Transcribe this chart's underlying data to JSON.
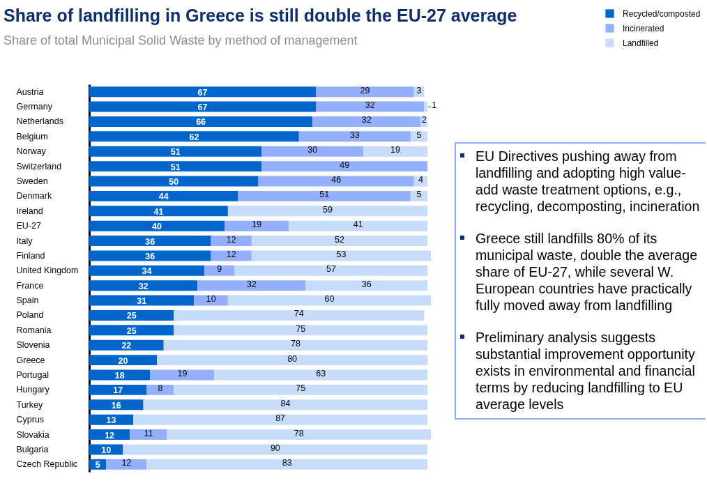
{
  "chart_data": {
    "type": "bar",
    "orientation": "horizontal",
    "stacked": true,
    "data_labels": true,
    "legend": "top right",
    "title": "Share of landfilling in Greece is still double the EU-27 average",
    "subtitle": "Share of total Municipal Solid Waste by method of management",
    "categories": [
      "Austria",
      "Germany",
      "Netherlands",
      "Belgium",
      "Norway",
      "Switzerland",
      "Sweden",
      "Denmark",
      "Ireland",
      "EU-27",
      "Italy",
      "Finland",
      "United Kingdom",
      "France",
      "Spain",
      "Poland",
      "Romania",
      "Slovenia",
      "Greece",
      "Portugal",
      "Hungary",
      "Turkey",
      "Cyprus",
      "Slovakia",
      "Bulgaria",
      "Czech Republic"
    ],
    "series": [
      {
        "name": "Recycled/composted",
        "color": "#0066cc",
        "values": [
          67,
          67,
          66,
          62,
          51,
          51,
          50,
          44,
          41,
          40,
          36,
          36,
          34,
          32,
          31,
          25,
          25,
          22,
          20,
          18,
          17,
          16,
          13,
          12,
          10,
          5
        ]
      },
      {
        "name": "Incinerated",
        "color": "#94b0fc",
        "values": [
          29,
          32,
          32,
          33,
          30,
          49,
          46,
          51,
          null,
          19,
          12,
          12,
          9,
          32,
          10,
          null,
          null,
          null,
          null,
          19,
          8,
          null,
          null,
          11,
          null,
          12
        ]
      },
      {
        "name": "Landfilled",
        "color": "#c6dcf8",
        "values": [
          3,
          1,
          2,
          5,
          19,
          null,
          4,
          5,
          59,
          41,
          52,
          53,
          57,
          36,
          60,
          74,
          75,
          78,
          80,
          63,
          75,
          84,
          87,
          78,
          90,
          83
        ]
      }
    ],
    "annotations": [
      "EU Directives pushing away from landfilling and adopting high value-add waste treatment options, e.g., recycling, decomposting, incineration",
      "Greece still landfills 80% of its municipal waste, double the average share of EU-27, while several W. European countries have practically fully moved away from landfilling",
      "Preliminary analysis suggests substantial improvement opportunity exists in environmental and financial terms by reducing landfilling to EU average levels"
    ]
  }
}
